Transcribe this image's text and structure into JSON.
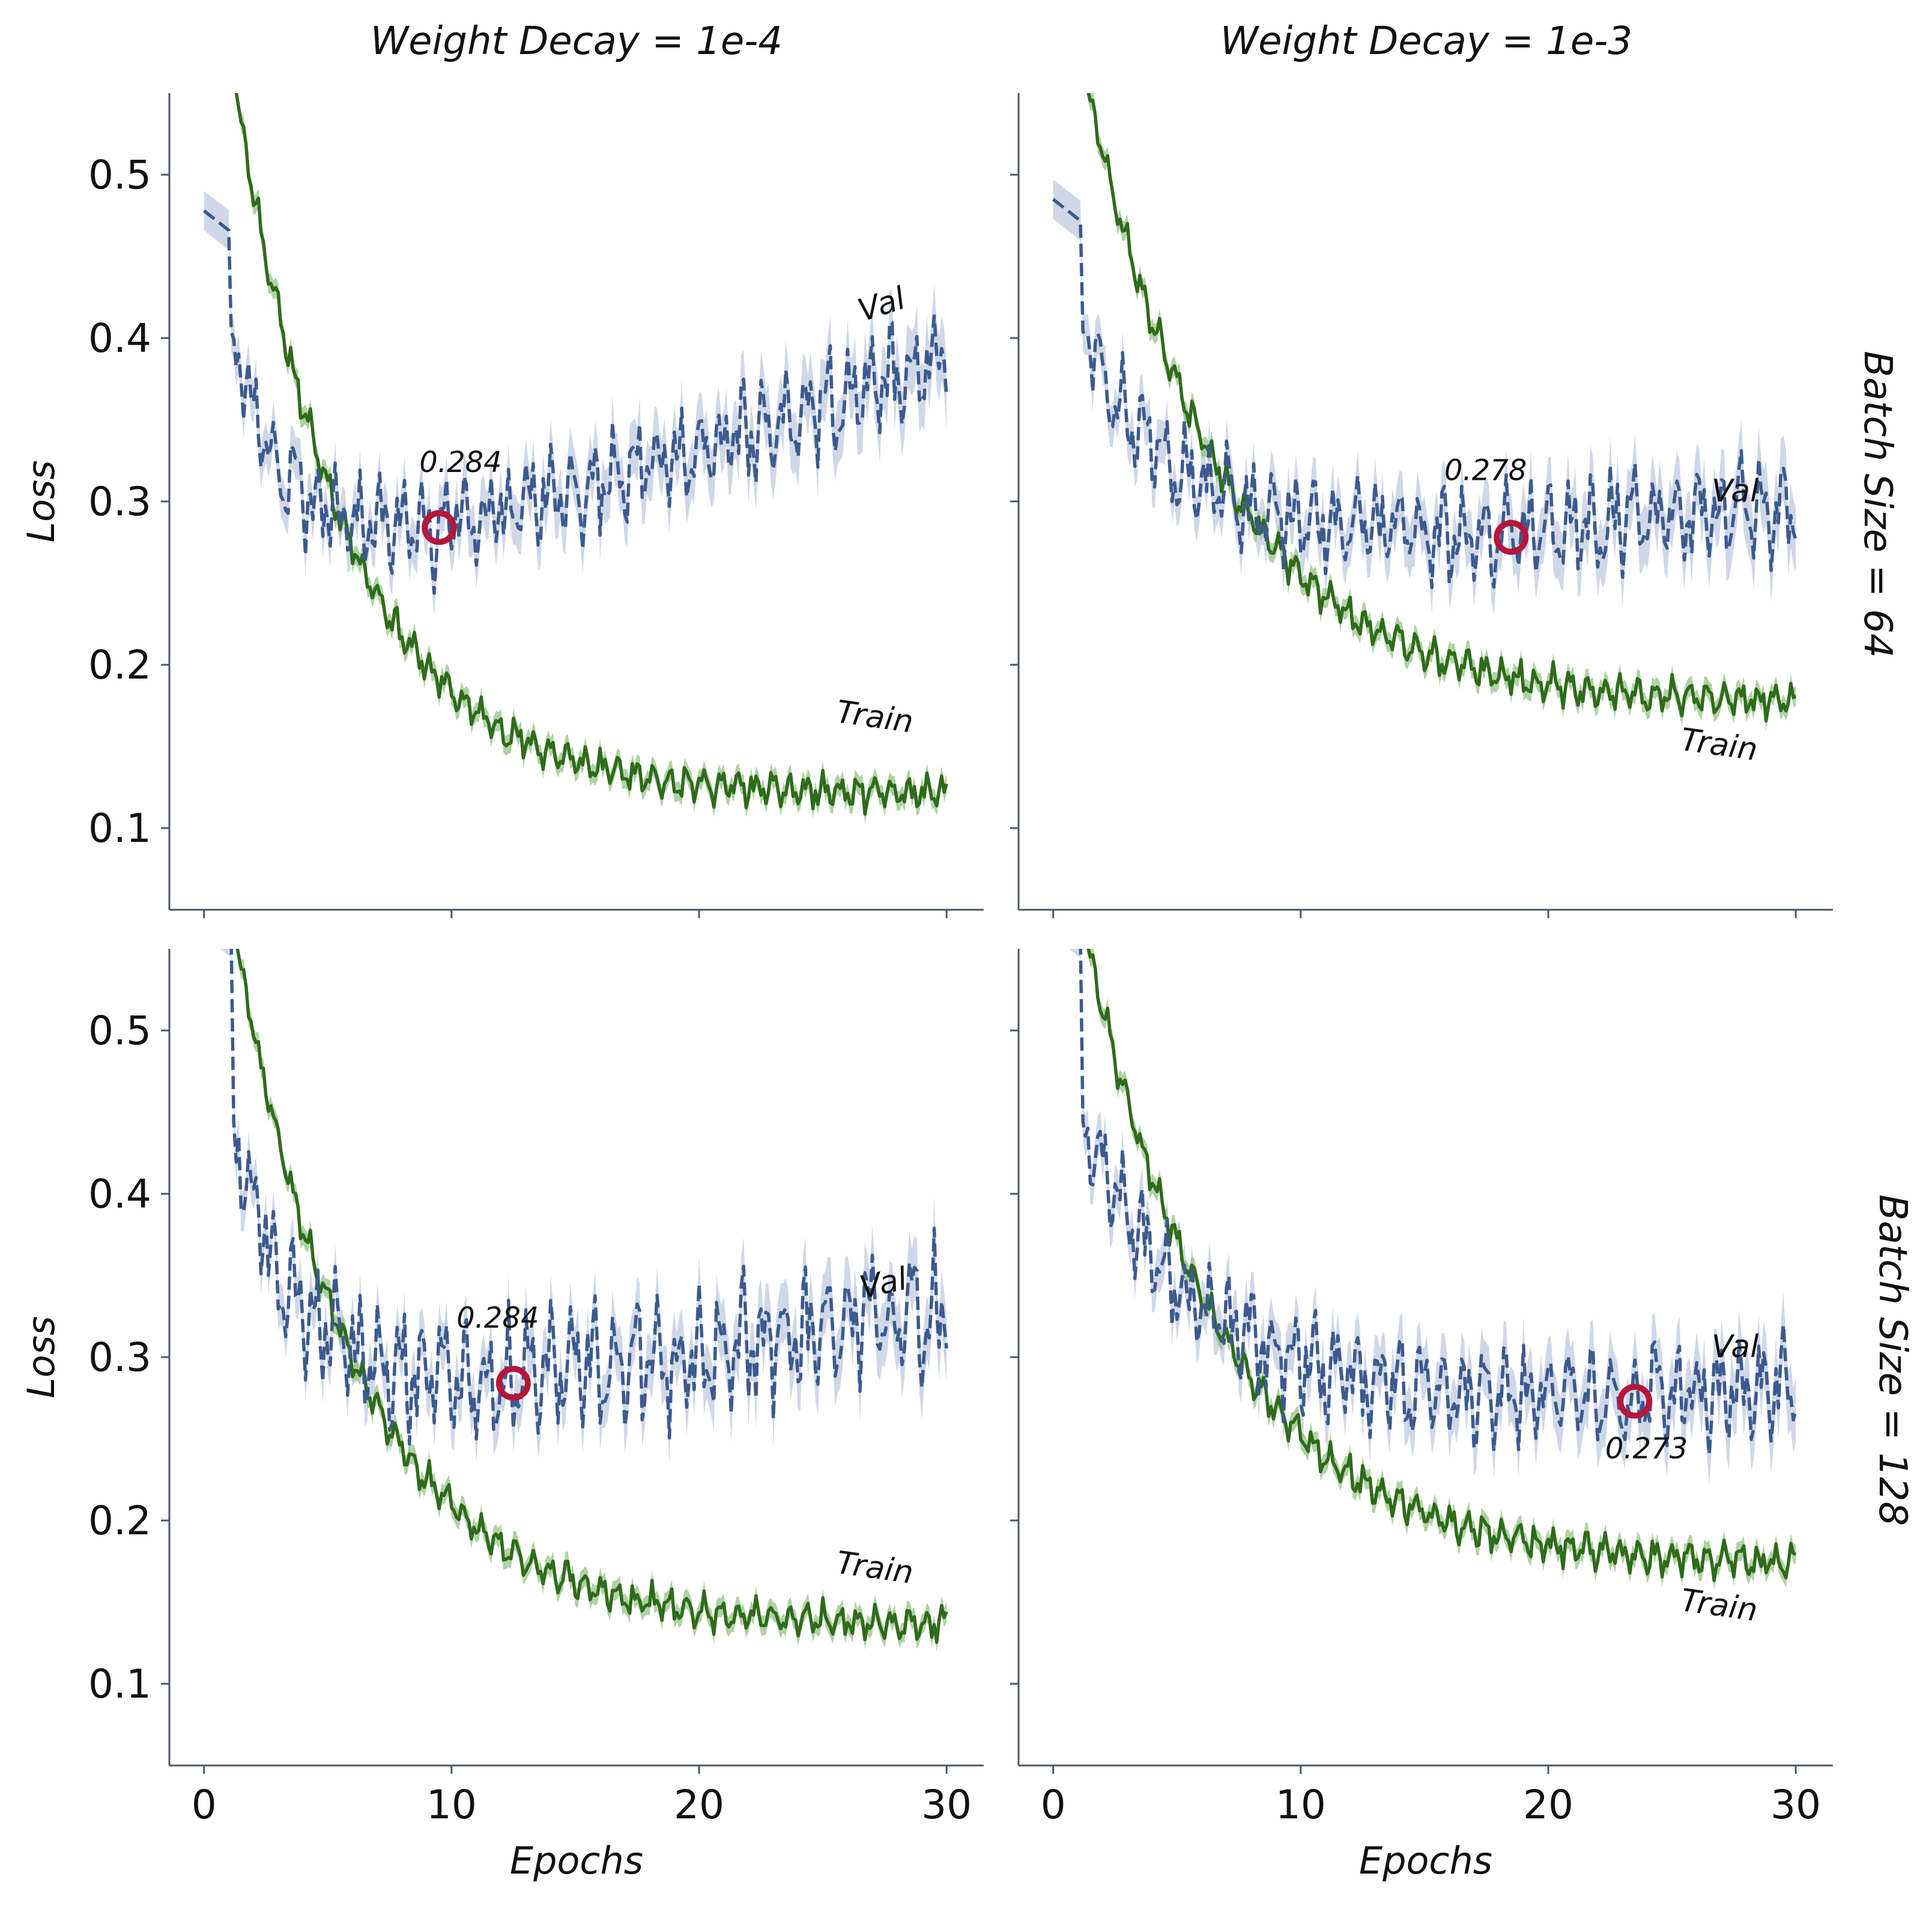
{
  "colors": {
    "train": "#2e6b1a",
    "train_band": "#8fbf7f",
    "val": "#3b5a8f",
    "val_band": "#a9b8d4",
    "min_marker": "#b5163a"
  },
  "column_titles": [
    "Weight Decay = 1e-4",
    "Weight Decay = 1e-3"
  ],
  "row_titles": [
    "Batch Size = 64",
    "Batch Size = 128"
  ],
  "chart_data": [
    {
      "type": "line",
      "panel": "top-left",
      "xlabel": "",
      "ylabel": "Loss",
      "xlim": [
        -1.4,
        31.5
      ],
      "ylim": [
        0.05,
        0.55
      ],
      "xticks": [
        0,
        10,
        20,
        30
      ],
      "yticks": [
        0.1,
        0.2,
        0.3,
        0.4,
        0.5
      ],
      "show_xtick_labels": false,
      "show_ytick_labels": true,
      "train": {
        "start": 0.58,
        "x_drop": 1.0,
        "end": 0.12,
        "k": 0.22,
        "amp": 0.007
      },
      "val": {
        "start": 0.478,
        "x_drop": 1.1,
        "after_drop": 0.4,
        "min_x": 9.5,
        "min_y": 0.284,
        "end": 0.385,
        "amp": 0.018
      },
      "series": [
        {
          "name": "Train",
          "label_x": 25.5,
          "label_y": 0.165,
          "label_rot": 8
        },
        {
          "name": "Val",
          "label_x": 26.6,
          "label_y": 0.41,
          "label_rot": -18
        }
      ],
      "min_marker": {
        "x": 9.5,
        "y": 0.284,
        "label": "0.284",
        "label_x": 8.7,
        "label_y": 0.318
      }
    },
    {
      "type": "line",
      "panel": "top-right",
      "xlabel": "",
      "ylabel": "",
      "xlim": [
        -1.4,
        31.5
      ],
      "ylim": [
        0.05,
        0.55
      ],
      "xticks": [
        0,
        10,
        20,
        30
      ],
      "yticks": [
        0.1,
        0.2,
        0.3,
        0.4,
        0.5
      ],
      "show_xtick_labels": false,
      "show_ytick_labels": false,
      "train": {
        "start": 0.58,
        "x_drop": 1.0,
        "end": 0.175,
        "k": 0.18,
        "amp": 0.007
      },
      "val": {
        "start": 0.485,
        "x_drop": 1.2,
        "after_drop": 0.4,
        "min_x": 18.5,
        "min_y": 0.278,
        "end": 0.295,
        "amp": 0.018
      },
      "series": [
        {
          "name": "Train",
          "label_x": 25.3,
          "label_y": 0.148,
          "label_rot": 8
        },
        {
          "name": "Val",
          "label_x": 26.6,
          "label_y": 0.3,
          "label_rot": 0
        }
      ],
      "min_marker": {
        "x": 18.5,
        "y": 0.278,
        "label": "0.278",
        "label_x": 15.8,
        "label_y": 0.313
      }
    },
    {
      "type": "line",
      "panel": "bottom-left",
      "xlabel": "Epochs",
      "ylabel": "Loss",
      "xlim": [
        -1.4,
        31.5
      ],
      "ylim": [
        0.05,
        0.55
      ],
      "xticks": [
        0,
        10,
        20,
        30
      ],
      "yticks": [
        0.1,
        0.2,
        0.3,
        0.4,
        0.5
      ],
      "show_xtick_labels": true,
      "show_ytick_labels": true,
      "train": {
        "start": 0.58,
        "x_drop": 1.0,
        "end": 0.135,
        "k": 0.2,
        "amp": 0.007
      },
      "val": {
        "start": 0.57,
        "x_drop": 1.2,
        "after_drop": 0.44,
        "min_x": 12.5,
        "min_y": 0.284,
        "end": 0.325,
        "amp": 0.022
      },
      "series": [
        {
          "name": "Train",
          "label_x": 25.5,
          "label_y": 0.168,
          "label_rot": 8
        },
        {
          "name": "Val",
          "label_x": 26.6,
          "label_y": 0.336,
          "label_rot": -12
        }
      ],
      "min_marker": {
        "x": 12.5,
        "y": 0.284,
        "label": "0.284",
        "label_x": 10.2,
        "label_y": 0.318
      }
    },
    {
      "type": "line",
      "panel": "bottom-right",
      "xlabel": "Epochs",
      "ylabel": "",
      "xlim": [
        -1.4,
        31.5
      ],
      "ylim": [
        0.05,
        0.55
      ],
      "xticks": [
        0,
        10,
        20,
        30
      ],
      "yticks": [
        0.1,
        0.2,
        0.3,
        0.4,
        0.5
      ],
      "show_xtick_labels": true,
      "show_ytick_labels": false,
      "train": {
        "start": 0.58,
        "x_drop": 1.0,
        "end": 0.172,
        "k": 0.18,
        "amp": 0.007
      },
      "val": {
        "start": 0.57,
        "x_drop": 1.2,
        "after_drop": 0.44,
        "min_x": 23.5,
        "min_y": 0.273,
        "end": 0.28,
        "amp": 0.018
      },
      "series": [
        {
          "name": "Train",
          "label_x": 25.3,
          "label_y": 0.145,
          "label_rot": 8
        },
        {
          "name": "Val",
          "label_x": 26.6,
          "label_y": 0.3,
          "label_rot": 0
        }
      ],
      "min_marker": {
        "x": 23.5,
        "y": 0.273,
        "label": "0.273",
        "label_x": 22.3,
        "label_y": 0.238
      }
    }
  ]
}
